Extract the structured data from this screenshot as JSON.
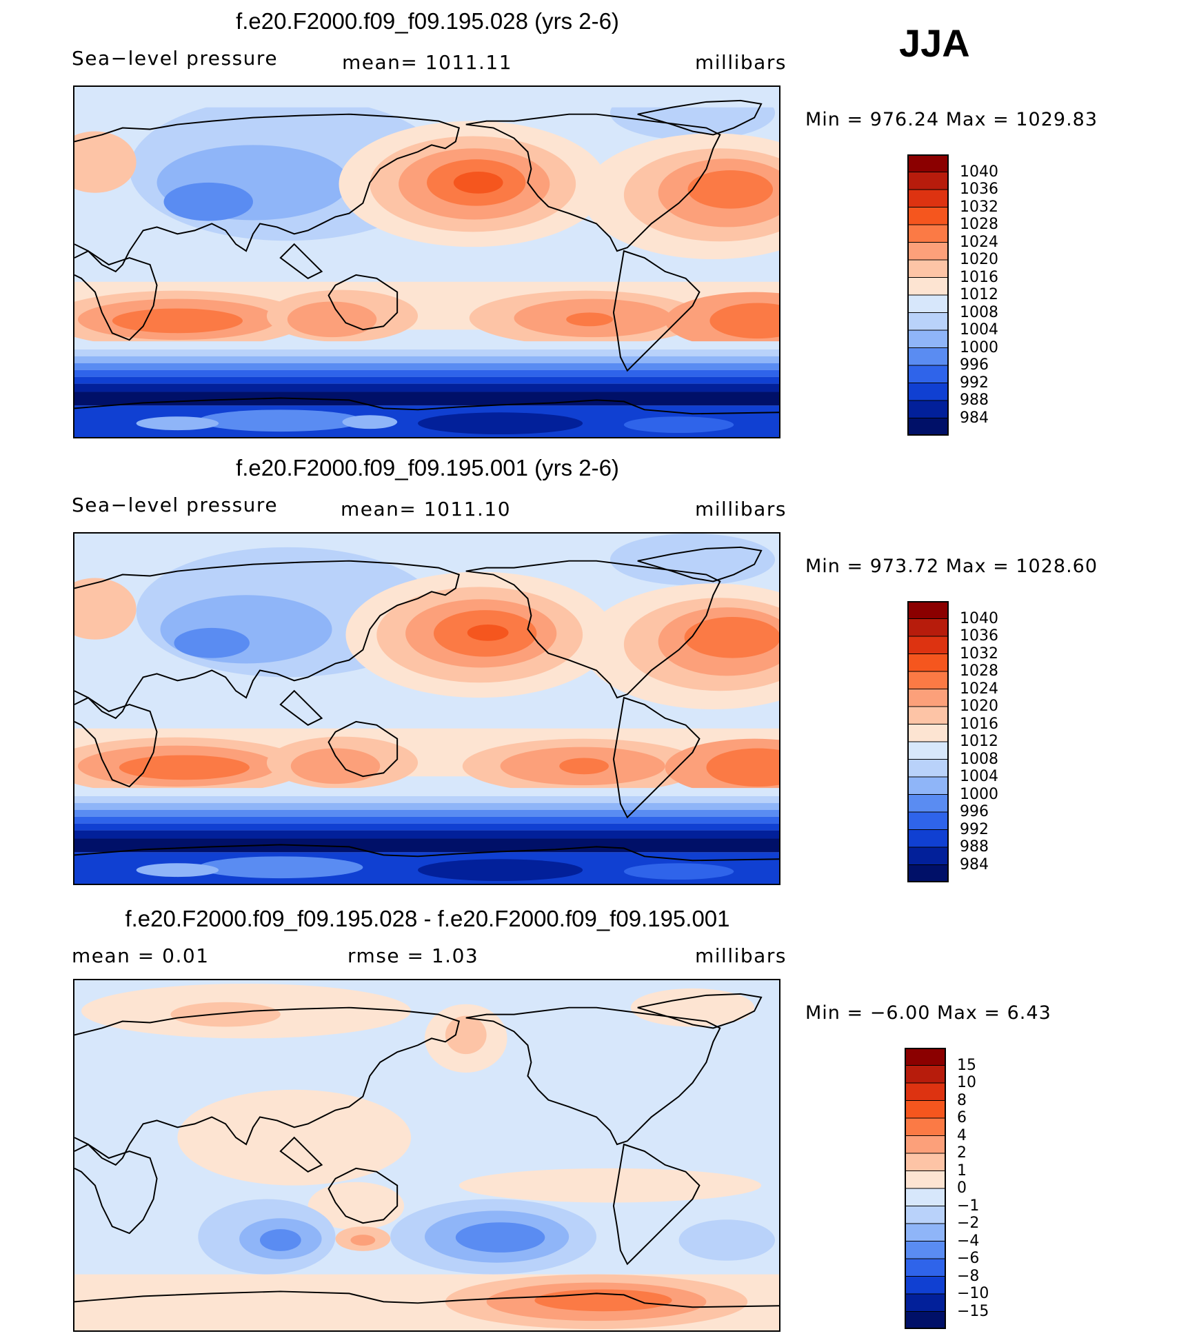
{
  "season": "JJA",
  "chart_data": [
    {
      "type": "heatmap",
      "title": "f.e20.F2000.f09_f09.195.028 (yrs 2-6)",
      "variable": "Sea−level pressure",
      "stat_text": "mean=  1011.11",
      "units": "millibars",
      "min_max_text": "Min  =  976.24  Max  =  1029.83",
      "min": 976.24,
      "max": 1029.83,
      "mean": 1011.11,
      "colorbar_levels": [
        "1040",
        "1036",
        "1032",
        "1028",
        "1024",
        "1020",
        "1016",
        "1012",
        "1008",
        "1004",
        "1000",
        "996",
        "992",
        "988",
        "984"
      ],
      "colorbar_colors": [
        "#8b0000",
        "#b71c0c",
        "#dd3311",
        "#f5561e",
        "#fb7a45",
        "#fca07a",
        "#fdc4a6",
        "#fde4d2",
        "#d7e7fb",
        "#b9d2fa",
        "#8fb5f8",
        "#5a8cf2",
        "#2f64ea",
        "#1040d2",
        "#02209a",
        "#001068"
      ]
    },
    {
      "type": "heatmap",
      "title": "f.e20.F2000.f09_f09.195.001 (yrs 2-6)",
      "variable": "Sea−level pressure",
      "stat_text": "mean=  1011.10",
      "units": "millibars",
      "min_max_text": "Min  =  973.72  Max  =  1028.60",
      "min": 973.72,
      "max": 1028.6,
      "mean": 1011.1,
      "colorbar_levels": [
        "1040",
        "1036",
        "1032",
        "1028",
        "1024",
        "1020",
        "1016",
        "1012",
        "1008",
        "1004",
        "1000",
        "996",
        "992",
        "988",
        "984"
      ],
      "colorbar_colors": [
        "#8b0000",
        "#b71c0c",
        "#dd3311",
        "#f5561e",
        "#fb7a45",
        "#fca07a",
        "#fdc4a6",
        "#fde4d2",
        "#d7e7fb",
        "#b9d2fa",
        "#8fb5f8",
        "#5a8cf2",
        "#2f64ea",
        "#1040d2",
        "#02209a",
        "#001068"
      ]
    },
    {
      "type": "heatmap",
      "title": "f.e20.F2000.f09_f09.195.028 - f.e20.F2000.f09_f09.195.001",
      "variable": "mean  =     0.01",
      "stat_text": "rmse  =     1.03",
      "units": "millibars",
      "min_max_text": "Min  =   −6.00  Max  =      6.43",
      "min": -6.0,
      "max": 6.43,
      "mean": 0.01,
      "rmse": 1.03,
      "colorbar_levels": [
        "15",
        "10",
        "8",
        "6",
        "4",
        "2",
        "1",
        "0",
        "−1",
        "−2",
        "−4",
        "−6",
        "−8",
        "−10",
        "−15"
      ],
      "colorbar_colors": [
        "#8b0000",
        "#b71c0c",
        "#dd3311",
        "#f5561e",
        "#fb7a45",
        "#fca07a",
        "#fdc4a6",
        "#fde4d2",
        "#d7e7fb",
        "#b9d2fa",
        "#8fb5f8",
        "#5a8cf2",
        "#2f64ea",
        "#1040d2",
        "#02209a",
        "#001068"
      ]
    }
  ]
}
